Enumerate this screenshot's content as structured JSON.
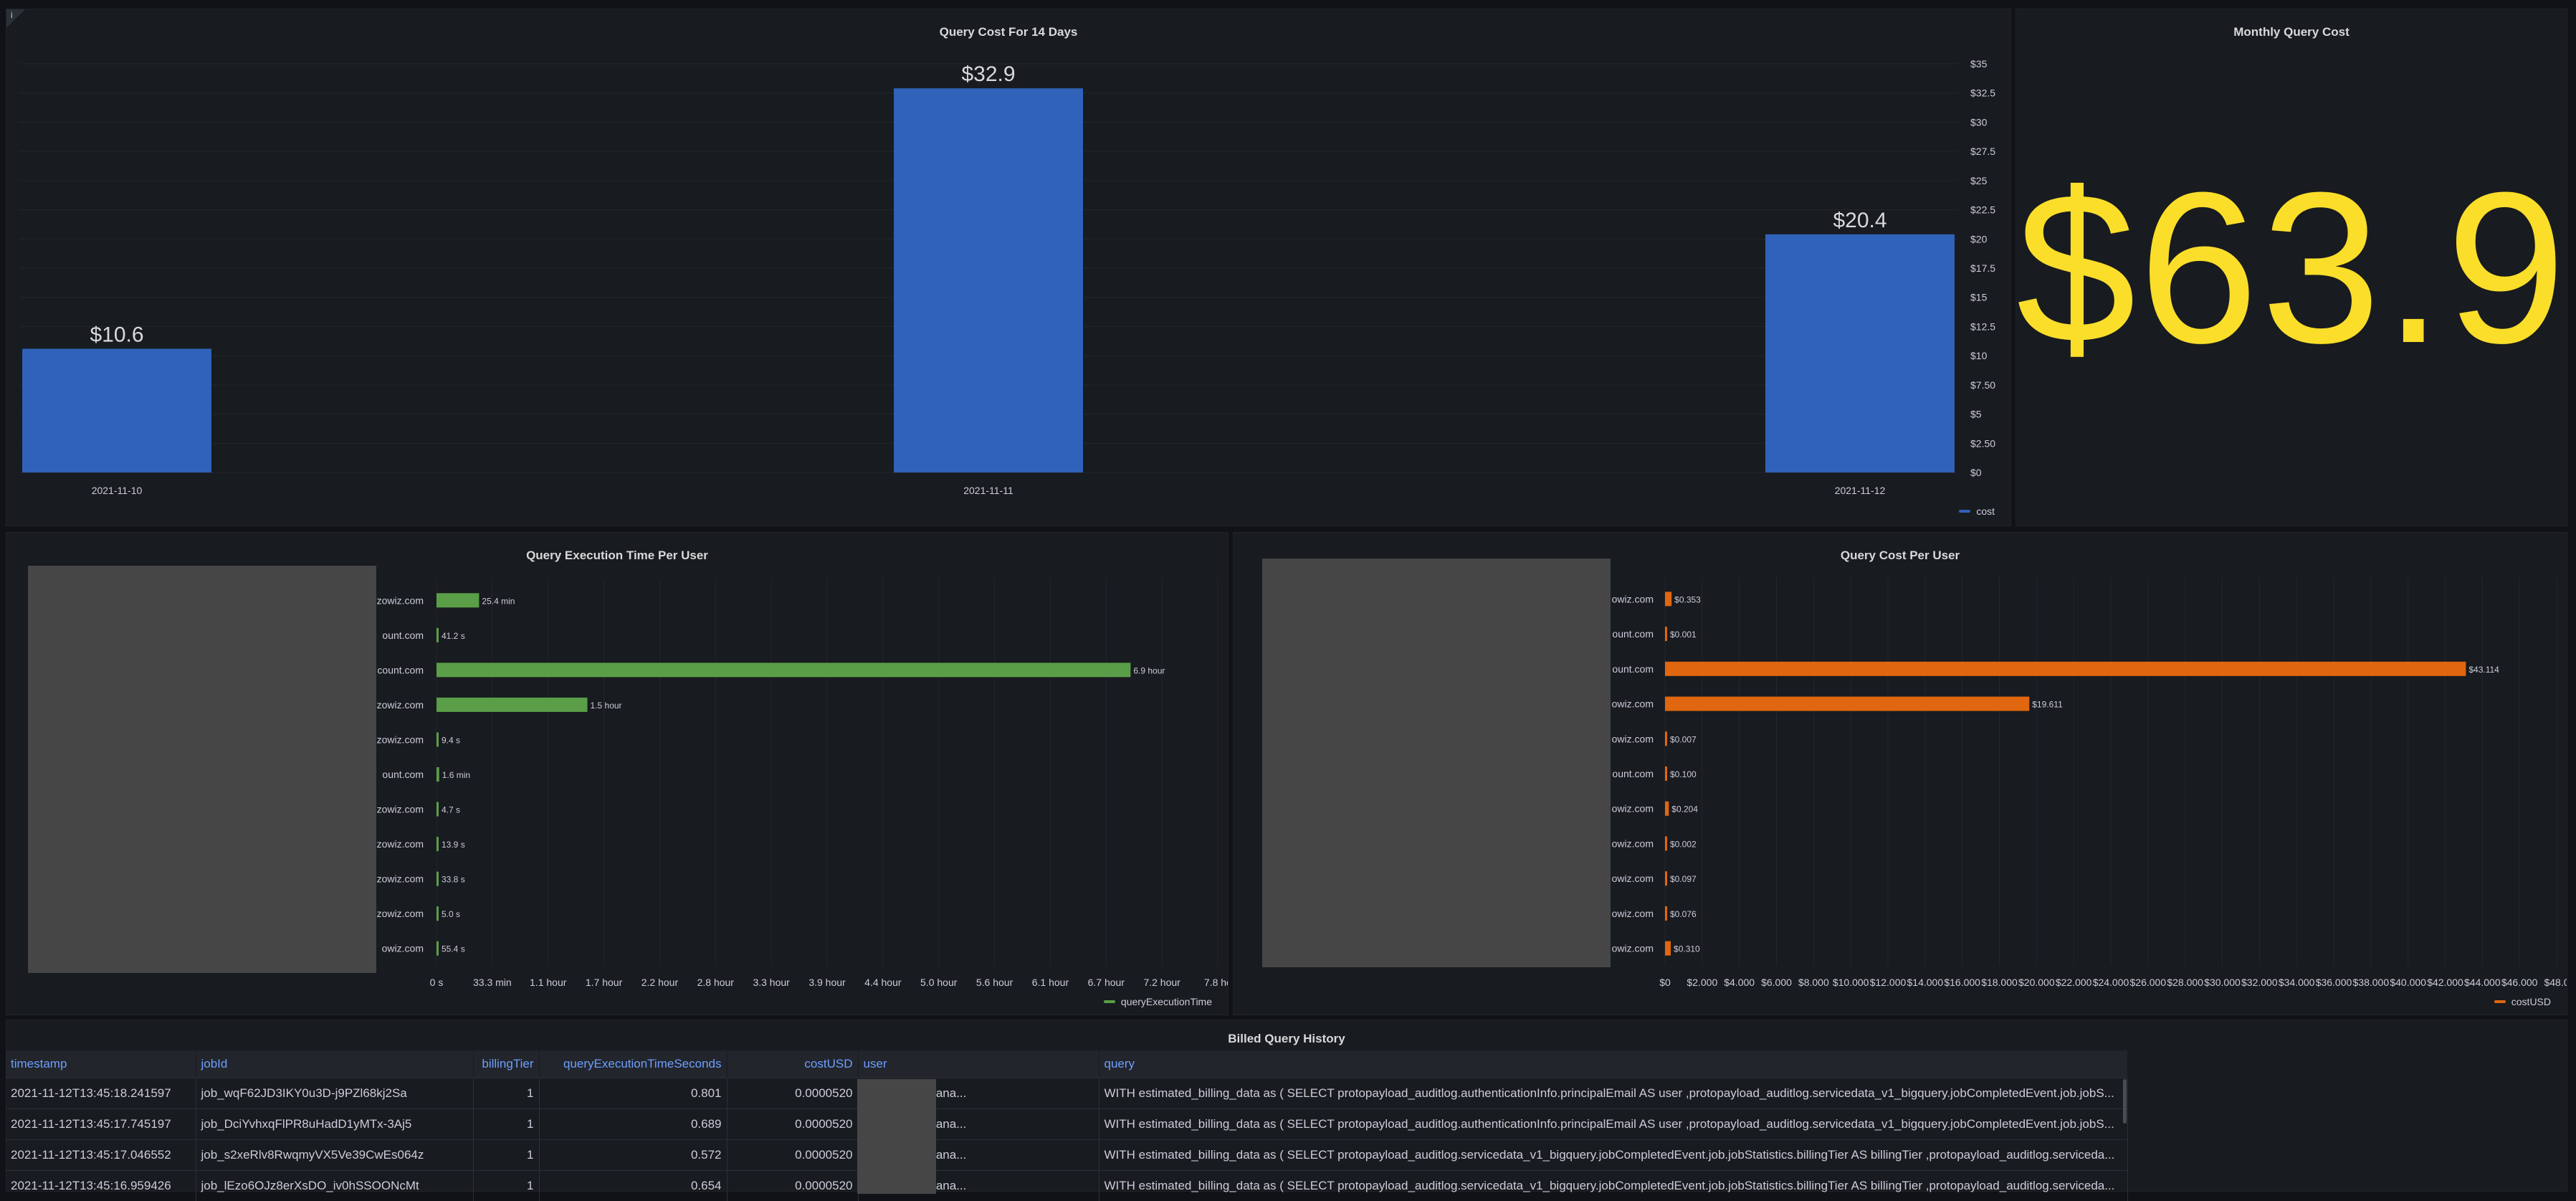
{
  "colors": {
    "bar_blue": "#2f62b8",
    "exec_green": "#5a9e48",
    "cost_orange": "#e0670f",
    "stat_yellow": "#fade2a",
    "header_blue": "#6e9fff"
  },
  "panel_info_icon": "i",
  "cost14": {
    "title": "Query Cost For 14 Days",
    "legend": "cost"
  },
  "monthly": {
    "title": "Monthly Query Cost",
    "value": "$63.9"
  },
  "exec_panel": {
    "title": "Query Execution Time Per User",
    "legend": "queryExecutionTime"
  },
  "cost_panel": {
    "title": "Query Cost Per User",
    "legend": "costUSD"
  },
  "chart_data": [
    {
      "type": "bar",
      "title": "Query Cost For 14 Days",
      "categories": [
        "2021-11-10",
        "2021-11-11",
        "2021-11-12"
      ],
      "values": [
        10.6,
        32.9,
        20.4
      ],
      "value_labels": [
        "$10.6",
        "$32.9",
        "$20.4"
      ],
      "series": [
        {
          "name": "cost",
          "values": [
            10.6,
            32.9,
            20.4
          ]
        }
      ],
      "y_ticks": [
        "$0",
        "$2.50",
        "$5",
        "$7.50",
        "$10",
        "$12.5",
        "$15",
        "$17.5",
        "$20",
        "$22.5",
        "$25",
        "$27.5",
        "$30",
        "$32.5",
        "$35"
      ],
      "ylim": [
        0,
        35
      ],
      "y_axis_side": "right",
      "grid": true,
      "legend_position": "bottom-right"
    },
    {
      "type": "bar",
      "orientation": "horizontal",
      "title": "Query Execution Time Per User",
      "category_labels": [
        "zowiz.com",
        "ount.com",
        "count.com",
        "zowiz.com",
        "zowiz.com",
        "ount.com",
        "zowiz.com",
        "zowiz.com",
        "zowiz.com",
        "zowiz.com",
        "owiz.com"
      ],
      "values_minutes": [
        25.4,
        0.687,
        414,
        90,
        0.157,
        1.6,
        0.078,
        0.232,
        0.563,
        0.083,
        0.923
      ],
      "value_labels": [
        "25.4 min",
        "41.2 s",
        "6.9 hour",
        "1.5 hour",
        "9.4 s",
        "1.6 min",
        "4.7 s",
        "13.9 s",
        "33.8 s",
        "5.0 s",
        "55.4 s"
      ],
      "series": [
        {
          "name": "queryExecutionTime"
        }
      ],
      "x_ticks": [
        "0 s",
        "33.3 min",
        "1.1 hour",
        "1.7 hour",
        "2.2 hour",
        "2.8 hour",
        "3.3 hour",
        "3.9 hour",
        "4.4 hour",
        "5.0 hour",
        "5.6 hour",
        "6.1 hour",
        "6.7 hour",
        "7.2 hour",
        "7.8 hc"
      ],
      "xlim_minutes": [
        0,
        466
      ],
      "grid": true,
      "legend_position": "bottom-right"
    },
    {
      "type": "bar",
      "orientation": "horizontal",
      "title": "Query Cost Per User",
      "category_labels": [
        "owiz.com",
        "ount.com",
        "ount.com",
        "owiz.com",
        "owiz.com",
        "ount.com",
        "owiz.com",
        "owiz.com",
        "owiz.com",
        "owiz.com",
        "owiz.com"
      ],
      "values": [
        0.353,
        0.001,
        43.114,
        19.611,
        0.007,
        0.1,
        0.204,
        0.002,
        0.097,
        0.076,
        0.31
      ],
      "value_labels": [
        "$0.353",
        "$0.001",
        "$43.114",
        "$19.611",
        "$0.007",
        "$0.100",
        "$0.204",
        "$0.002",
        "$0.097",
        "$0.076",
        "$0.310"
      ],
      "series": [
        {
          "name": "costUSD"
        }
      ],
      "x_ticks": [
        "$0",
        "$2.000",
        "$4.000",
        "$6.000",
        "$8.000",
        "$10.000",
        "$12.000",
        "$14.000",
        "$16.000",
        "$18.000",
        "$20.000",
        "$22.000",
        "$24.000",
        "$26.000",
        "$28.000",
        "$30.000",
        "$32.000",
        "$34.000",
        "$36.000",
        "$38.000",
        "$40.000",
        "$42.000",
        "$44.000",
        "$46.000",
        "$48.0"
      ],
      "xlim": [
        0,
        48
      ],
      "grid": true,
      "legend_position": "bottom-right"
    }
  ],
  "history": {
    "title": "Billed Query History",
    "columns": [
      "timestamp",
      "jobId",
      "billingTier",
      "queryExecutionTimeSeconds",
      "costUSD",
      "user",
      "query"
    ],
    "rows": [
      [
        "2021-11-12T13:45:18.241597",
        "job_wqF62JD3IKY0u3D-j9PZl68kj2Sa",
        "1",
        "0.801",
        "0.0000520",
        "ct@common-ana...",
        "WITH estimated_billing_data as ( SELECT protopayload_auditlog.authenticationInfo.principalEmail AS user ,protopayload_auditlog.servicedata_v1_bigquery.jobCompletedEvent.job.jobS..."
      ],
      [
        "2021-11-12T13:45:17.745197",
        "job_DciYvhxqFlPR8uHadD1yMTx-3Aj5",
        "1",
        "0.689",
        "0.0000520",
        "ct@common-ana...",
        "WITH estimated_billing_data as ( SELECT protopayload_auditlog.authenticationInfo.principalEmail AS user ,protopayload_auditlog.servicedata_v1_bigquery.jobCompletedEvent.job.jobS..."
      ],
      [
        "2021-11-12T13:45:17.046552",
        "job_s2xeRlv8RwqmyVX5Ve39CwEs064z",
        "1",
        "0.572",
        "0.0000520",
        "ct@common-ana...",
        "WITH estimated_billing_data as ( SELECT protopayload_auditlog.servicedata_v1_bigquery.jobCompletedEvent.job.jobStatistics.billingTier AS billingTier ,protopayload_auditlog.serviceda..."
      ],
      [
        "2021-11-12T13:45:16.959426",
        "job_lEzo6OJz8erXsDO_iv0hSSOONcMt",
        "1",
        "0.654",
        "0.0000520",
        "ct@common-ana...",
        "WITH estimated_billing_data as ( SELECT protopayload_auditlog.servicedata_v1_bigquery.jobCompletedEvent.job.jobStatistics.billingTier AS billingTier ,protopayload_auditlog.serviceda..."
      ]
    ]
  }
}
